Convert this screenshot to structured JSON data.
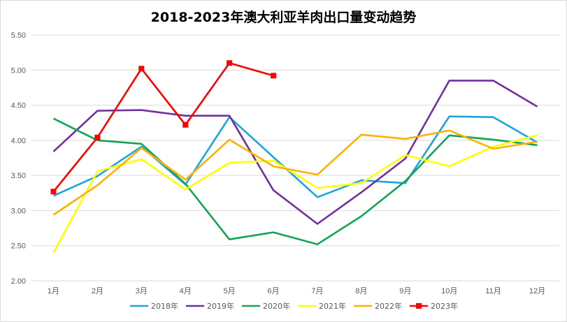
{
  "chart_data": {
    "type": "line",
    "title": "2018-2023年澳大利亚羊肉出口量变动趋势",
    "xlabel": "",
    "ylabel": "",
    "categories": [
      "1月",
      "2月",
      "3月",
      "4月",
      "5月",
      "6月",
      "7月",
      "8月",
      "9月",
      "10月",
      "11月",
      "12月"
    ],
    "ylim": [
      2.0,
      5.5
    ],
    "y_ticks": [
      "2.00",
      "2.50",
      "3.00",
      "3.50",
      "4.00",
      "4.50",
      "5.00",
      "5.50"
    ],
    "grid": true,
    "legend_position": "bottom",
    "series": [
      {
        "name": "2018年",
        "color": "#1aa5e0",
        "marker": "none",
        "values": [
          3.21,
          3.49,
          3.91,
          3.37,
          4.33,
          3.76,
          3.19,
          3.43,
          3.39,
          4.34,
          4.33,
          3.97
        ]
      },
      {
        "name": "2019年",
        "color": "#7030a0",
        "marker": "none",
        "values": [
          3.84,
          4.42,
          4.43,
          4.35,
          4.35,
          3.29,
          2.81,
          3.26,
          3.74,
          4.85,
          4.85,
          4.48
        ]
      },
      {
        "name": "2020年",
        "color": "#13a454",
        "marker": "none",
        "values": [
          4.31,
          4.0,
          3.95,
          3.38,
          2.59,
          2.69,
          2.52,
          2.92,
          3.42,
          4.07,
          4.01,
          3.93
        ]
      },
      {
        "name": "2021年",
        "color": "#ffff00",
        "marker": "none",
        "values": [
          2.4,
          3.56,
          3.73,
          3.3,
          3.68,
          3.71,
          3.32,
          3.39,
          3.79,
          3.63,
          3.91,
          4.07
        ]
      },
      {
        "name": "2022年",
        "color": "#ffb000",
        "marker": "none",
        "values": [
          2.94,
          3.36,
          3.89,
          3.44,
          4.01,
          3.63,
          3.51,
          4.08,
          4.02,
          4.14,
          3.88,
          3.98
        ]
      },
      {
        "name": "2023年",
        "color": "#ff0000",
        "marker": "square",
        "values": [
          3.27,
          4.04,
          5.02,
          4.22,
          5.1,
          4.92,
          null,
          null,
          null,
          null,
          null,
          null
        ]
      }
    ]
  }
}
